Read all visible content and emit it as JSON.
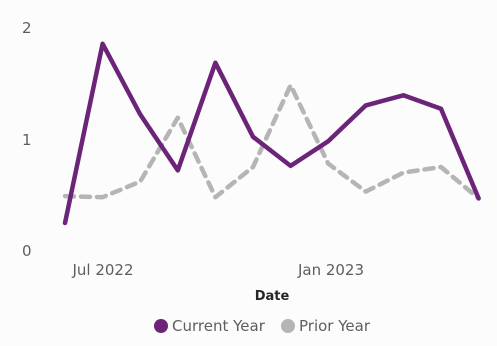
{
  "chart_data": {
    "type": "line",
    "title": "",
    "xlabel": "Date",
    "ylabel": "",
    "ylim": [
      0,
      2
    ],
    "y_ticks": [
      "0",
      "1",
      "2"
    ],
    "x_ticks": [
      "Jul 2022",
      "Jan 2023"
    ],
    "grid": false,
    "legend_position": "bottom-center",
    "x": [
      "2022-06",
      "2022-07",
      "2022-08",
      "2022-09",
      "2022-10",
      "2022-11",
      "2022-12",
      "2023-01",
      "2023-02",
      "2023-03",
      "2023-04",
      "2023-05"
    ],
    "series": [
      {
        "name": "Current Year",
        "color": "#6b2478",
        "style": "solid",
        "values": [
          0.25,
          1.85,
          1.22,
          0.72,
          1.68,
          1.02,
          0.76,
          0.98,
          1.3,
          1.39,
          1.27,
          0.47
        ]
      },
      {
        "name": "Prior Year",
        "color": "#b5b5b5",
        "style": "dashed",
        "values": [
          0.49,
          0.48,
          0.62,
          1.19,
          0.48,
          0.75,
          1.48,
          0.78,
          0.53,
          0.7,
          0.75,
          0.47
        ]
      }
    ]
  }
}
